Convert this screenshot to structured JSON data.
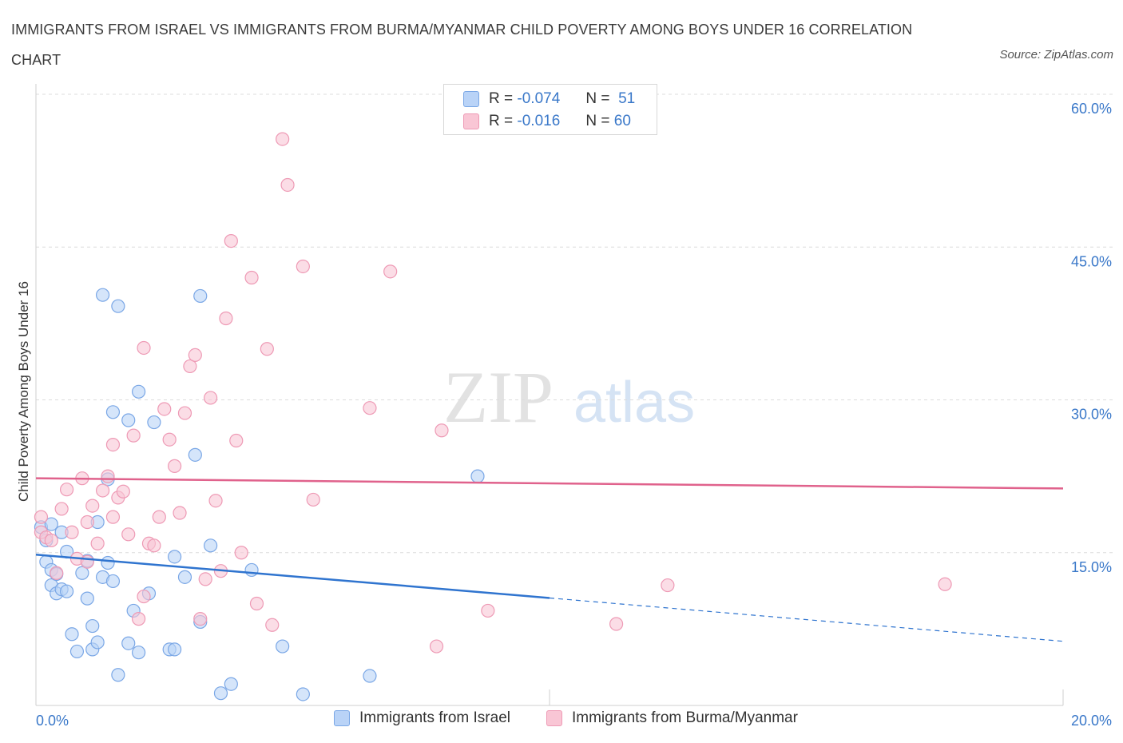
{
  "title": "IMMIGRANTS FROM ISRAEL VS IMMIGRANTS FROM BURMA/MYANMAR CHILD POVERTY AMONG BOYS UNDER 16 CORRELATION CHART",
  "source": "Source: ZipAtlas.com",
  "watermark": {
    "zip": "ZIP",
    "atlas": "atlas"
  },
  "legend": {
    "r_label": "R =",
    "n_label": "N =",
    "rows": [
      {
        "r": "-0.074",
        "n": "51",
        "fill": "#b9d3f7",
        "stroke": "#7aa7e6"
      },
      {
        "r": "-0.016",
        "n": "60",
        "fill": "#f9c6d5",
        "stroke": "#ee9ab5"
      }
    ]
  },
  "bottom_legend": [
    "Immigrants from Israel",
    "Immigrants from Burma/Myanmar"
  ],
  "chart_data": {
    "type": "scatter",
    "title": "IMMIGRANTS FROM ISRAEL VS IMMIGRANTS FROM BURMA/MYANMAR CHILD POVERTY AMONG BOYS UNDER 16 CORRELATION CHART",
    "xlabel": "",
    "ylabel": "Child Poverty Among Boys Under 16",
    "xlim": [
      0,
      20
    ],
    "ylim": [
      0,
      60
    ],
    "x_tick_labels": [
      {
        "value": 0,
        "label": "0.0%"
      },
      {
        "value": 20,
        "label": "20.0%"
      }
    ],
    "y_tick_labels": [
      {
        "value": 15,
        "label": "15.0%"
      },
      {
        "value": 30,
        "label": "30.0%"
      },
      {
        "value": 45,
        "label": "45.0%"
      },
      {
        "value": 60,
        "label": "60.0%"
      }
    ],
    "grid": "horizontal dashed",
    "legend_position": "top-center",
    "series": [
      {
        "name": "Immigrants from Israel",
        "color": "#7aa7e6",
        "fill": "#b9d3f7",
        "line_color": "#2f74cf",
        "trend": {
          "x0": 0,
          "y0": 14.8,
          "x_solid_end": 10.0,
          "x1": 20,
          "y1": 6.3
        },
        "points": [
          [
            0.1,
            17.5
          ],
          [
            0.2,
            14.1
          ],
          [
            0.3,
            13.3
          ],
          [
            0.3,
            11.8
          ],
          [
            0.2,
            16.2
          ],
          [
            0.4,
            11.0
          ],
          [
            0.4,
            12.9
          ],
          [
            0.5,
            11.4
          ],
          [
            0.6,
            11.2
          ],
          [
            0.6,
            15.1
          ],
          [
            0.7,
            7.0
          ],
          [
            0.8,
            5.3
          ],
          [
            0.9,
            13.0
          ],
          [
            1.0,
            14.2
          ],
          [
            1.0,
            10.5
          ],
          [
            1.1,
            7.8
          ],
          [
            1.1,
            5.5
          ],
          [
            1.2,
            6.2
          ],
          [
            1.3,
            12.6
          ],
          [
            1.4,
            22.2
          ],
          [
            1.4,
            14.0
          ],
          [
            1.5,
            12.2
          ],
          [
            1.5,
            28.8
          ],
          [
            1.6,
            3.0
          ],
          [
            1.8,
            6.1
          ],
          [
            1.9,
            9.3
          ],
          [
            2.0,
            5.2
          ],
          [
            2.0,
            30.8
          ],
          [
            2.2,
            11.0
          ],
          [
            2.3,
            27.8
          ],
          [
            2.6,
            5.5
          ],
          [
            2.7,
            14.6
          ],
          [
            2.9,
            12.6
          ],
          [
            3.1,
            24.6
          ],
          [
            3.2,
            8.2
          ],
          [
            3.4,
            15.7
          ],
          [
            3.6,
            1.2
          ],
          [
            3.8,
            2.1
          ],
          [
            4.2,
            13.3
          ],
          [
            4.8,
            5.8
          ],
          [
            5.2,
            1.1
          ],
          [
            6.5,
            2.9
          ],
          [
            8.6,
            22.5
          ],
          [
            1.3,
            40.3
          ],
          [
            1.6,
            39.2
          ],
          [
            3.2,
            40.2
          ],
          [
            0.3,
            17.8
          ],
          [
            0.5,
            17.0
          ],
          [
            2.7,
            5.5
          ],
          [
            1.2,
            18.0
          ],
          [
            1.8,
            28.0
          ]
        ]
      },
      {
        "name": "Immigrants from Burma/Myanmar",
        "color": "#ee9ab5",
        "fill": "#f9c6d5",
        "line_color": "#e0628c",
        "trend": {
          "x0": 0,
          "y0": 22.3,
          "x1": 20,
          "y1": 21.3
        },
        "points": [
          [
            0.1,
            17.0
          ],
          [
            0.2,
            16.5
          ],
          [
            0.3,
            16.2
          ],
          [
            0.4,
            13.0
          ],
          [
            0.5,
            19.3
          ],
          [
            0.6,
            21.2
          ],
          [
            0.7,
            17.0
          ],
          [
            0.8,
            14.4
          ],
          [
            0.9,
            22.3
          ],
          [
            1.0,
            18.0
          ],
          [
            1.0,
            14.1
          ],
          [
            1.1,
            19.6
          ],
          [
            1.2,
            15.9
          ],
          [
            1.3,
            21.1
          ],
          [
            1.4,
            22.5
          ],
          [
            1.5,
            18.5
          ],
          [
            1.5,
            25.6
          ],
          [
            1.6,
            20.4
          ],
          [
            1.7,
            21.0
          ],
          [
            1.8,
            16.8
          ],
          [
            1.9,
            26.5
          ],
          [
            2.0,
            8.5
          ],
          [
            2.1,
            10.7
          ],
          [
            2.1,
            35.1
          ],
          [
            2.2,
            15.9
          ],
          [
            2.3,
            15.7
          ],
          [
            2.4,
            18.5
          ],
          [
            2.5,
            29.1
          ],
          [
            2.6,
            26.1
          ],
          [
            2.7,
            23.5
          ],
          [
            2.8,
            18.9
          ],
          [
            2.9,
            28.7
          ],
          [
            3.0,
            33.3
          ],
          [
            3.1,
            34.4
          ],
          [
            3.2,
            8.5
          ],
          [
            3.3,
            12.4
          ],
          [
            3.4,
            30.2
          ],
          [
            3.5,
            20.1
          ],
          [
            3.6,
            13.2
          ],
          [
            3.7,
            38.0
          ],
          [
            3.8,
            45.6
          ],
          [
            3.9,
            26.0
          ],
          [
            4.0,
            15.0
          ],
          [
            4.2,
            42.0
          ],
          [
            4.3,
            10.0
          ],
          [
            4.5,
            35.0
          ],
          [
            4.6,
            7.9
          ],
          [
            4.8,
            55.6
          ],
          [
            4.9,
            51.1
          ],
          [
            5.2,
            43.1
          ],
          [
            5.4,
            20.2
          ],
          [
            6.5,
            29.2
          ],
          [
            6.9,
            42.6
          ],
          [
            7.8,
            5.8
          ],
          [
            7.9,
            27.0
          ],
          [
            8.8,
            9.3
          ],
          [
            11.3,
            8.0
          ],
          [
            12.3,
            11.8
          ],
          [
            17.7,
            11.9
          ],
          [
            0.1,
            18.5
          ]
        ]
      }
    ]
  }
}
